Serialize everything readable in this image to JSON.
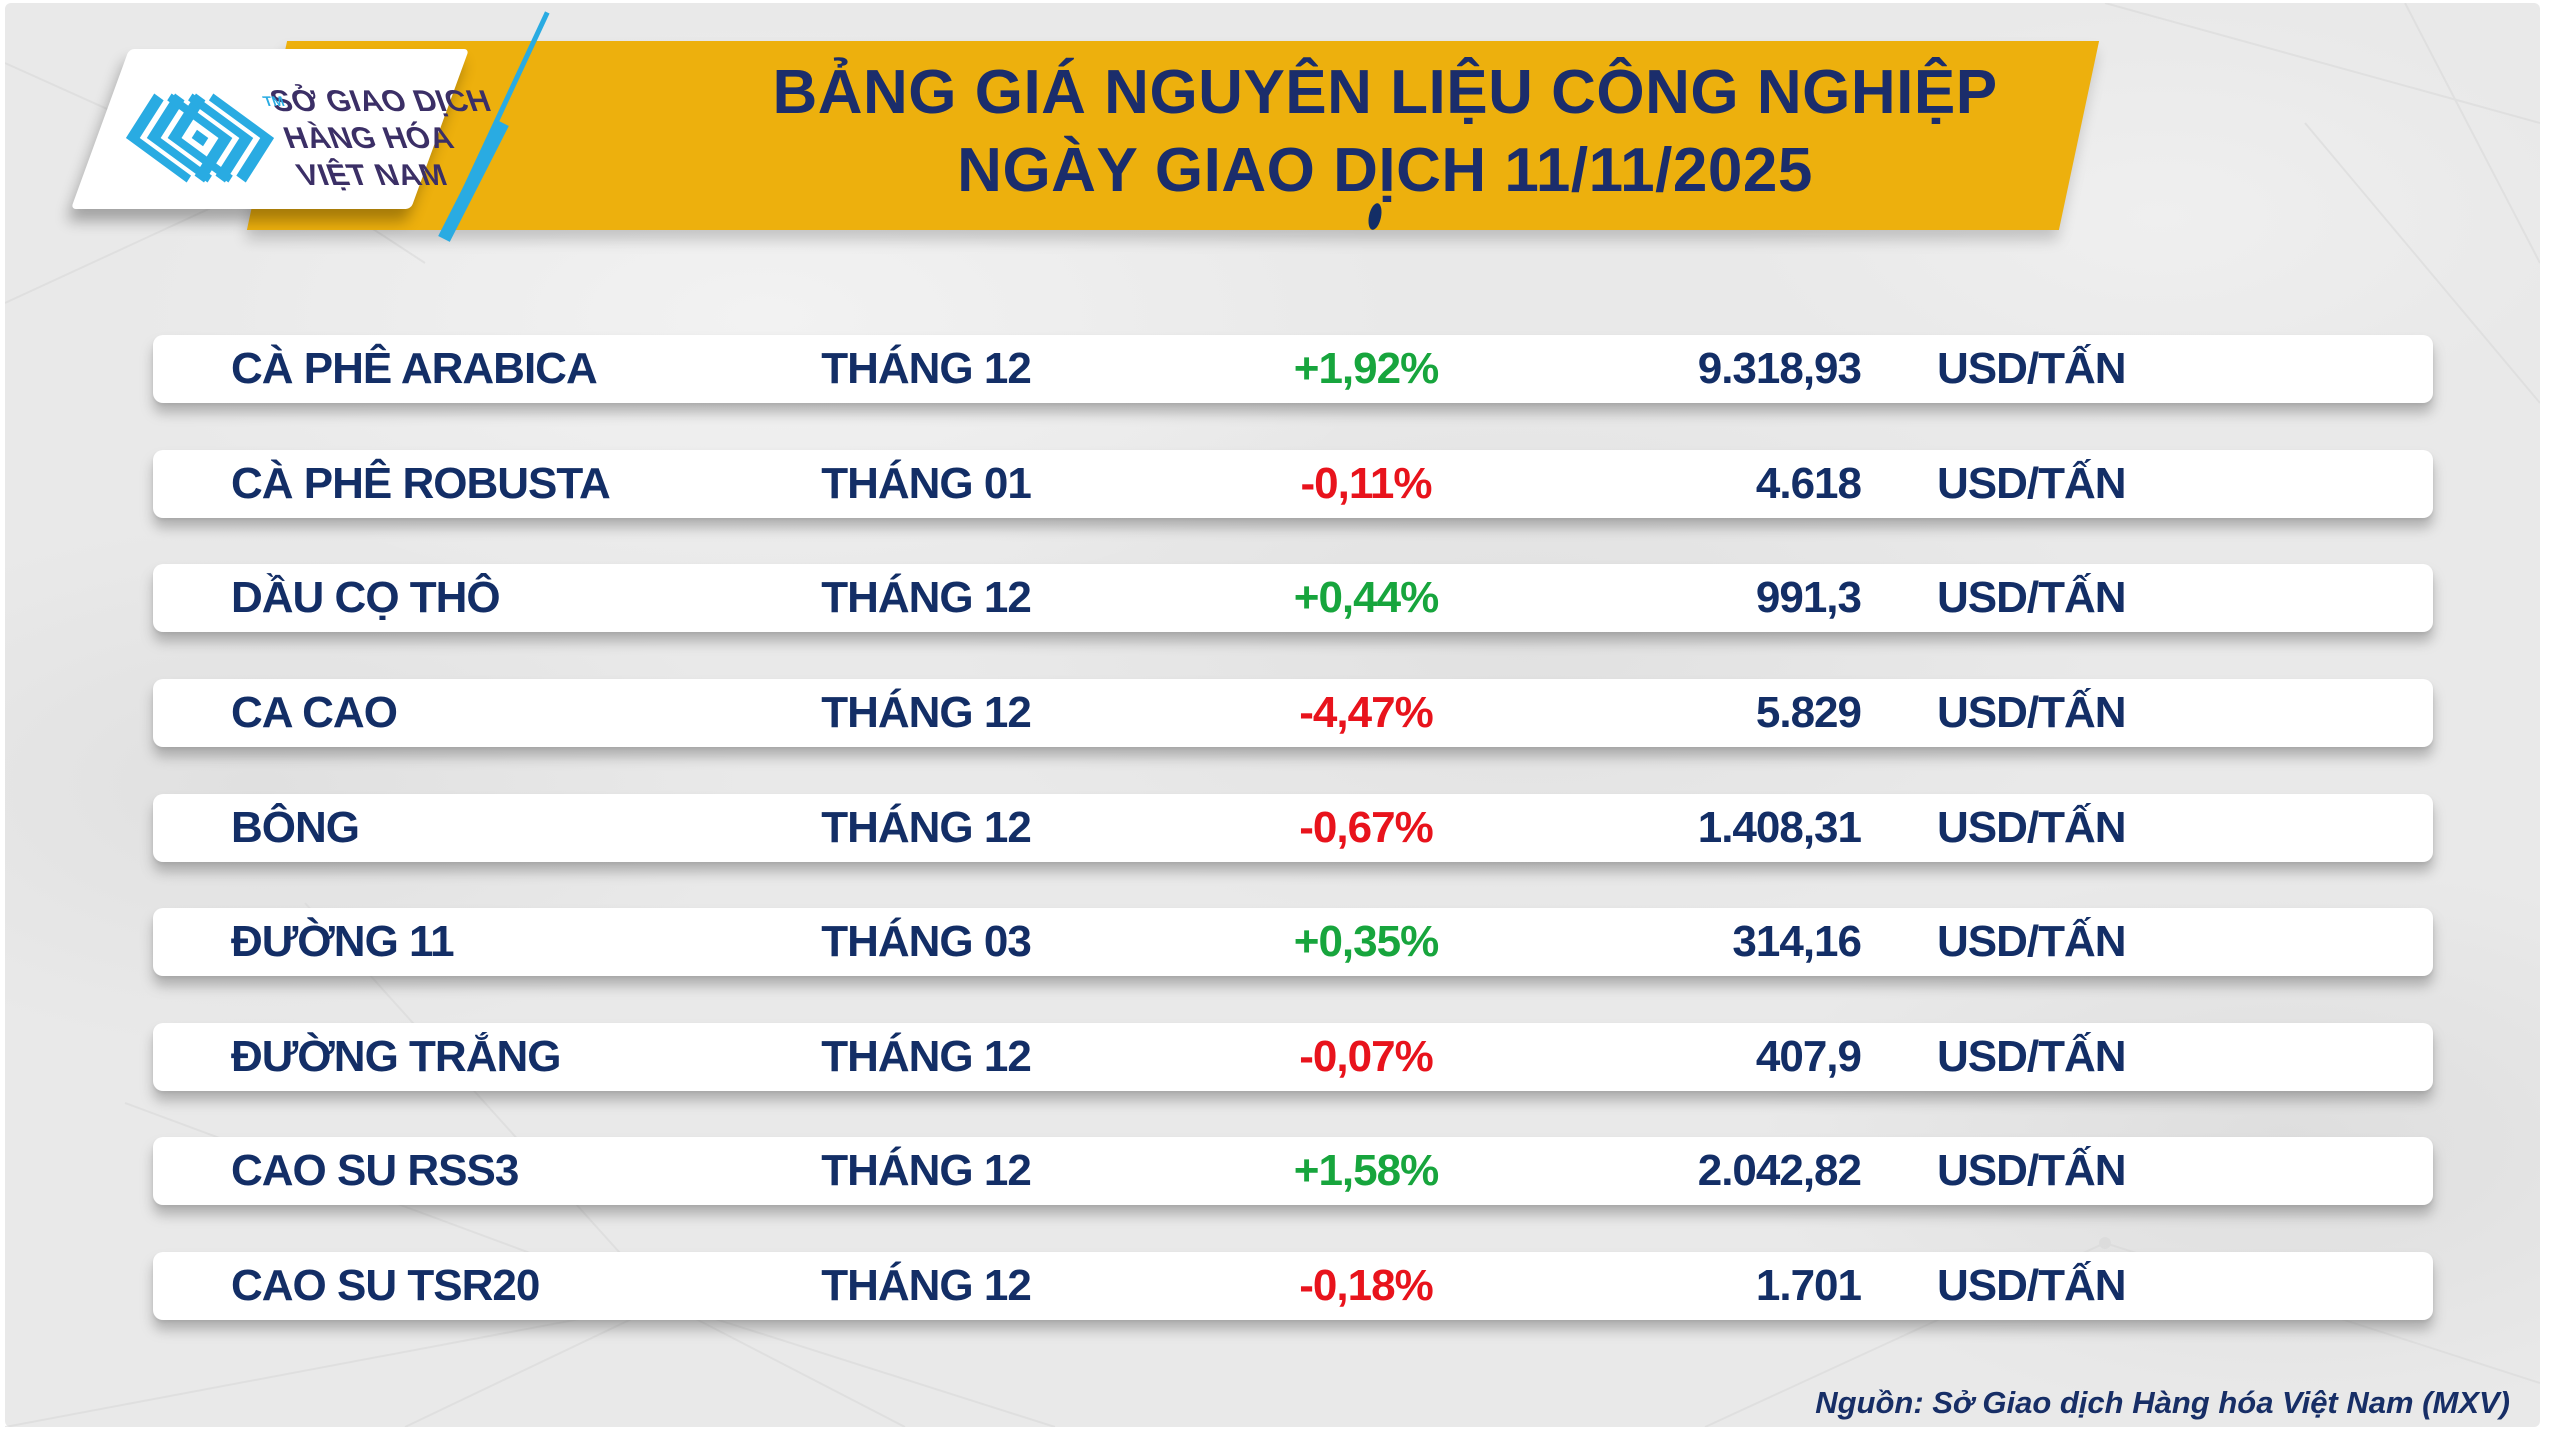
{
  "header": {
    "logo": {
      "lines": [
        "SỞ GIAO DỊCH",
        "HÀNG HÓA",
        "VIỆT NAM"
      ],
      "tm": "TM"
    },
    "title_line1": "BẢNG GIÁ NGUYÊN LIỆU CÔNG NGHIỆP",
    "title_line2": "NGÀY GIAO DỊCH 11/11/2025"
  },
  "footer": {
    "source": "Nguồn: Sở Giao dịch Hàng hóa Việt Nam (MXV)"
  },
  "colors": {
    "banner_yellow": "#EDB00D",
    "title_navy": "#1b2d6b",
    "row_navy": "#132e66",
    "green_up": "#17A53D",
    "red_down": "#E8131C",
    "logo_cyan": "#29ABE2",
    "logo_text_purple": "#3b2f66"
  },
  "chart_data": {
    "type": "table",
    "title": "BẢNG GIÁ NGUYÊN LIỆU CÔNG NGHIỆP NGÀY GIAO DỊCH 11/11/2025",
    "source": "Nguồn: Sở Giao dịch Hàng hóa Việt Nam (MXV)",
    "rows": [
      {
        "name": "CÀ PHÊ ARABICA",
        "month": "THÁNG 12",
        "change": "+1,92%",
        "direction": "up",
        "price": "9.318,93",
        "unit": "USD/TẤN"
      },
      {
        "name": "CÀ PHÊ ROBUSTA",
        "month": "THÁNG 01",
        "change": "-0,11%",
        "direction": "down",
        "price": "4.618",
        "unit": "USD/TẤN"
      },
      {
        "name": "DẦU CỌ THÔ",
        "month": "THÁNG 12",
        "change": "+0,44%",
        "direction": "up",
        "price": "991,3",
        "unit": "USD/TẤN"
      },
      {
        "name": "CA CAO",
        "month": "THÁNG 12",
        "change": "-4,47%",
        "direction": "down",
        "price": "5.829",
        "unit": "USD/TẤN"
      },
      {
        "name": "BÔNG",
        "month": "THÁNG 12",
        "change": "-0,67%",
        "direction": "down",
        "price": "1.408,31",
        "unit": "USD/TẤN"
      },
      {
        "name": "ĐƯỜNG 11",
        "month": "THÁNG 03",
        "change": "+0,35%",
        "direction": "up",
        "price": "314,16",
        "unit": "USD/TẤN"
      },
      {
        "name": "ĐƯỜNG TRẮNG",
        "month": "THÁNG 12",
        "change": "-0,07%",
        "direction": "down",
        "price": "407,9",
        "unit": "USD/TẤN"
      },
      {
        "name": "CAO SU RSS3",
        "month": "THÁNG 12",
        "change": "+1,58%",
        "direction": "up",
        "price": "2.042,82",
        "unit": "USD/TẤN"
      },
      {
        "name": "CAO SU TSR20",
        "month": "THÁNG 12",
        "change": "-0,18%",
        "direction": "down",
        "price": "1.701",
        "unit": "USD/TẤN"
      }
    ]
  }
}
